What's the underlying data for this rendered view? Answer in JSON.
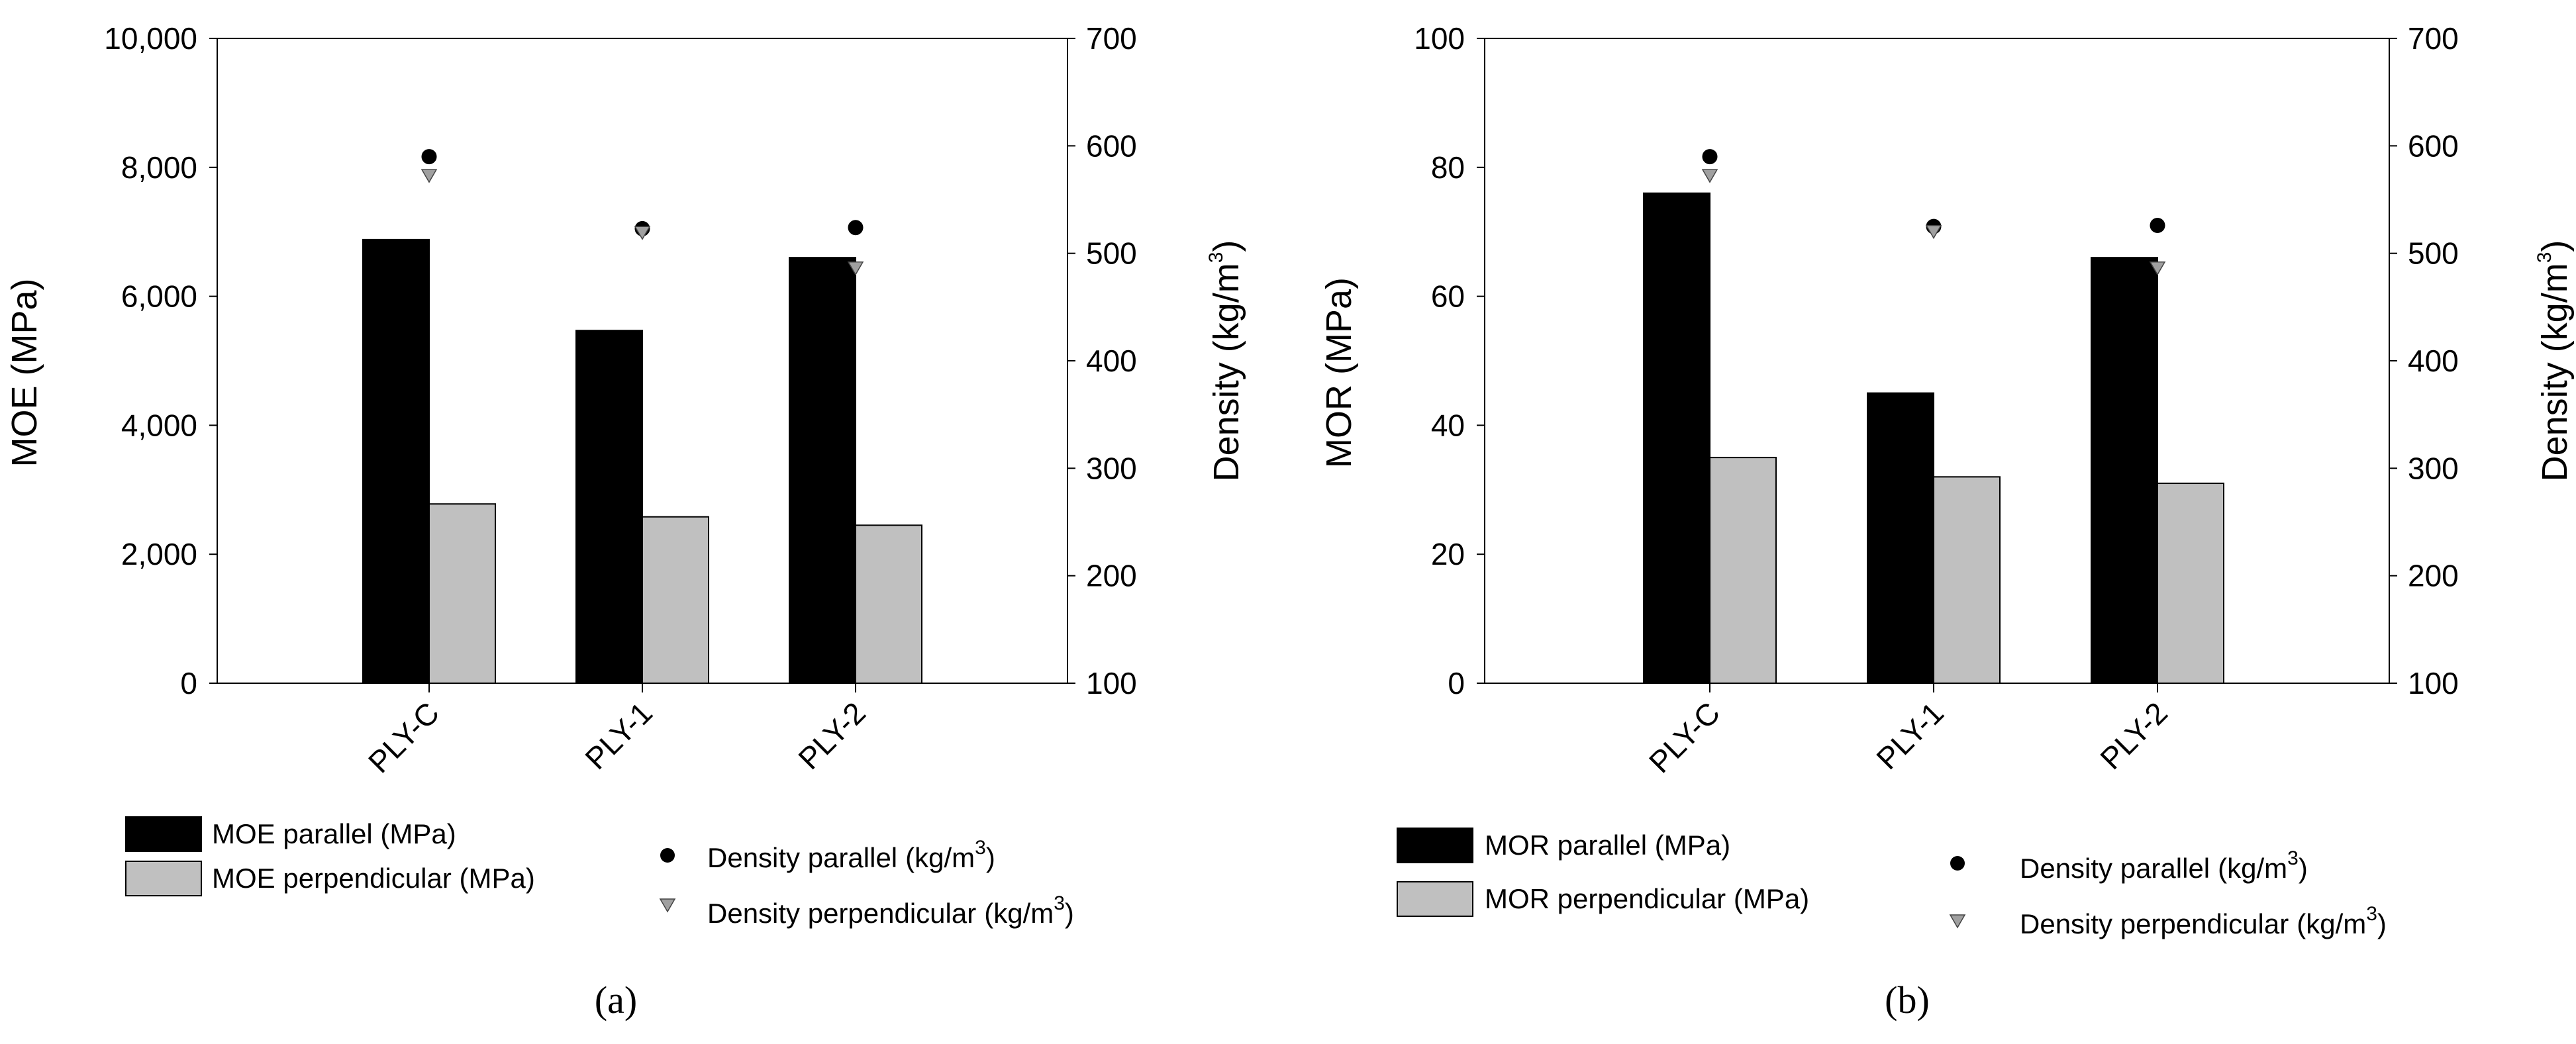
{
  "chart_data": [
    {
      "type": "bar",
      "categories": [
        "PLY-C",
        "PLY-1",
        "PLY-2"
      ],
      "series": [
        {
          "name": "MOE parallel (MPa)",
          "values": [
            6880,
            5470,
            6600
          ],
          "color": "#000000",
          "axis": "left"
        },
        {
          "name": "MOE perpendicular (MPa)",
          "values": [
            2780,
            2580,
            2450
          ],
          "color": "#c0c0c0",
          "axis": "left"
        }
      ],
      "scatter_series": [
        {
          "name": "Density parallel",
          "unit": "(kg/m",
          "unit_exp": "3",
          "unit_close": ")",
          "marker": "circle",
          "values": [
            590,
            523,
            524
          ],
          "color": "#000000"
        },
        {
          "name": "Density perpendicular",
          "unit": "(kg/m",
          "unit_exp": "3",
          "unit_close": ")",
          "marker": "triangle",
          "values": [
            573,
            520,
            487
          ],
          "color": "#a0a0a0"
        }
      ],
      "ylabel": "MOE (MPa)",
      "ylim": [
        0,
        10000
      ],
      "yticks": [
        "0",
        "2,000",
        "4,000",
        "6,000",
        "8,000",
        "10,000"
      ],
      "y2label": "Density (kg/m",
      "y2label_exp": "3",
      "y2label_close": ")",
      "y2lim": [
        100,
        700
      ],
      "y2ticks": [
        "100",
        "200",
        "300",
        "400",
        "500",
        "600",
        "700"
      ],
      "panel_label": "(a)"
    },
    {
      "type": "bar",
      "categories": [
        "PLY-C",
        "PLY-1",
        "PLY-2"
      ],
      "series": [
        {
          "name": "MOR parallel (MPa)",
          "values": [
            76,
            45,
            66
          ],
          "color": "#000000",
          "axis": "left"
        },
        {
          "name": "MOR perpendicular (MPa)",
          "values": [
            35,
            32,
            31
          ],
          "color": "#c0c0c0",
          "axis": "left"
        }
      ],
      "scatter_series": [
        {
          "name": "Density parallel",
          "unit": "(kg/m",
          "unit_exp": "3",
          "unit_close": ")",
          "marker": "circle",
          "values": [
            590,
            525,
            526
          ],
          "color": "#000000"
        },
        {
          "name": "Density perpendicular",
          "unit": "(kg/m",
          "unit_exp": "3",
          "unit_close": ")",
          "marker": "triangle",
          "values": [
            573,
            521,
            487
          ],
          "color": "#a0a0a0"
        }
      ],
      "ylabel": "MOR (MPa)",
      "ylim": [
        0,
        100
      ],
      "yticks": [
        "0",
        "20",
        "40",
        "60",
        "80",
        "100"
      ],
      "y2label": "Density (kg/m",
      "y2label_exp": "3",
      "y2label_close": ")",
      "y2lim": [
        100,
        700
      ],
      "y2ticks": [
        "100",
        "200",
        "300",
        "400",
        "500",
        "600",
        "700"
      ],
      "panel_label": "(b)"
    }
  ]
}
